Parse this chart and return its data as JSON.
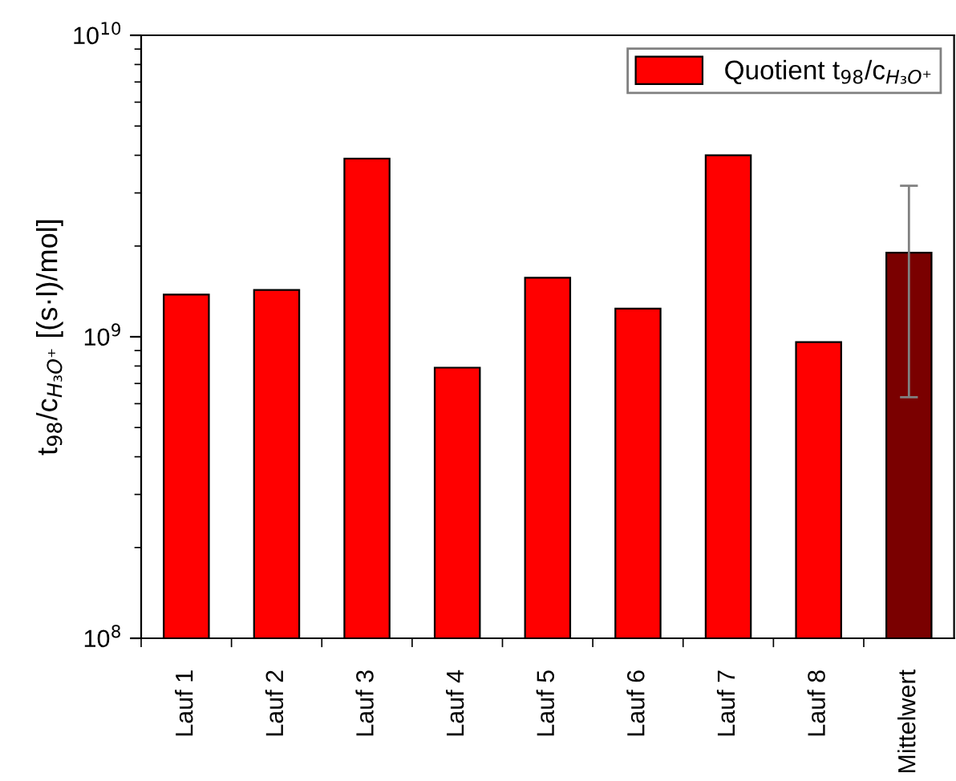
{
  "chart_data": {
    "type": "bar",
    "ylabel": "t$_{98}$/c$_{H₃O⁺}$ [(s·l)/mol]",
    "log": true,
    "ylim": [
      100000000.0,
      10000000000.0
    ],
    "yticks": [
      {
        "value": 100000000.0,
        "label": "10$^{8}$"
      },
      {
        "value": 1000000000.0,
        "label": "10$^{9}$"
      },
      {
        "value": 10000000000.0,
        "label": "10$^{10}$"
      }
    ],
    "categories": [
      "Lauf 1",
      "Lauf 2",
      "Lauf 3",
      "Lauf 4",
      "Lauf 5",
      "Lauf 6",
      "Lauf 7",
      "Lauf 8",
      "Mittelwert"
    ],
    "series": [
      {
        "name": "Quotient t$_{98}$/c$_{H₃O⁺}$",
        "color": "#ff0000",
        "colors": [
          "#ff0000",
          "#ff0000",
          "#ff0000",
          "#ff0000",
          "#ff0000",
          "#ff0000",
          "#ff0000",
          "#ff0000",
          "#7a0000"
        ],
        "values": [
          1380000000.0,
          1430000000.0,
          3900000000.0,
          790000000.0,
          1570000000.0,
          1240000000.0,
          4000000000.0,
          960000000.0,
          1900000000.0
        ],
        "errors": [
          null,
          null,
          null,
          null,
          null,
          null,
          null,
          null,
          1270000000.0
        ]
      }
    ],
    "legend": "top right",
    "grid": false
  }
}
